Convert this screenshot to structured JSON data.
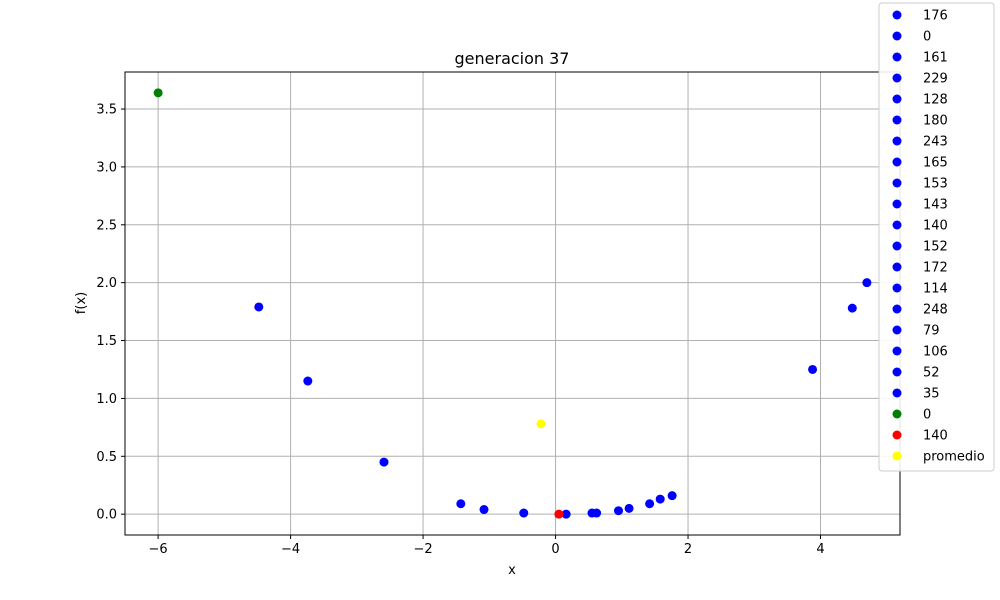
{
  "chart_data": {
    "type": "scatter",
    "title": "generacion 37",
    "xlabel": "x",
    "ylabel": "f(x)",
    "xlim": [
      -6.5,
      5.2
    ],
    "ylim": [
      -0.18,
      3.82
    ],
    "xticks": [
      -6,
      -4,
      -2,
      0,
      2,
      4
    ],
    "yticks": [
      0.0,
      0.5,
      1.0,
      1.5,
      2.0,
      2.5,
      3.0,
      3.5
    ],
    "xtick_labels": [
      "−6",
      "−4",
      "−2",
      "0",
      "2",
      "4"
    ],
    "ytick_labels": [
      "0.0",
      "0.5",
      "1.0",
      "1.5",
      "2.0",
      "2.5",
      "3.0",
      "3.5"
    ],
    "grid": true,
    "legend_position": "top-right",
    "colors": {
      "blue": "#0000ff",
      "green": "#008000",
      "red": "#ff0000",
      "yellow": "#ffff00"
    },
    "series": [
      {
        "name": "176",
        "color": "blue",
        "x": [
          -4.48
        ],
        "y": [
          1.79
        ]
      },
      {
        "name": "0",
        "color": "blue",
        "x": [
          -3.74
        ],
        "y": [
          1.15
        ]
      },
      {
        "name": "161",
        "color": "blue",
        "x": [
          -2.59
        ],
        "y": [
          0.45
        ]
      },
      {
        "name": "229",
        "color": "blue",
        "x": [
          -1.43
        ],
        "y": [
          0.09
        ]
      },
      {
        "name": "128",
        "color": "blue",
        "x": [
          -1.08
        ],
        "y": [
          0.04
        ]
      },
      {
        "name": "180",
        "color": "blue",
        "x": [
          -0.48
        ],
        "y": [
          0.01
        ]
      },
      {
        "name": "243",
        "color": "blue",
        "x": [
          0.16
        ],
        "y": [
          0.0
        ]
      },
      {
        "name": "165",
        "color": "blue",
        "x": [
          0.55
        ],
        "y": [
          0.01
        ]
      },
      {
        "name": "153",
        "color": "blue",
        "x": [
          0.62
        ],
        "y": [
          0.01
        ]
      },
      {
        "name": "143",
        "color": "blue",
        "x": [
          0.95
        ],
        "y": [
          0.03
        ]
      },
      {
        "name": "140",
        "color": "blue",
        "x": [
          1.11
        ],
        "y": [
          0.05
        ]
      },
      {
        "name": "152",
        "color": "blue",
        "x": [
          1.42
        ],
        "y": [
          0.09
        ]
      },
      {
        "name": "172",
        "color": "blue",
        "x": [
          1.58
        ],
        "y": [
          0.13
        ]
      },
      {
        "name": "114",
        "color": "blue",
        "x": [
          1.76
        ],
        "y": [
          0.16
        ]
      },
      {
        "name": "248",
        "color": "blue",
        "x": [
          3.88
        ],
        "y": [
          1.25
        ]
      },
      {
        "name": "79",
        "color": "blue",
        "x": [
          4.48
        ],
        "y": [
          1.78
        ]
      },
      {
        "name": "106",
        "color": "blue",
        "x": [
          4.7
        ],
        "y": [
          2.0
        ]
      },
      {
        "name": "52",
        "color": "blue",
        "x": [],
        "y": []
      },
      {
        "name": "35",
        "color": "blue",
        "x": [],
        "y": []
      },
      {
        "name": "0",
        "color": "green",
        "x": [
          -6.0
        ],
        "y": [
          3.64
        ]
      },
      {
        "name": "140",
        "color": "red",
        "x": [
          0.05
        ],
        "y": [
          0.0
        ]
      },
      {
        "name": "promedio",
        "color": "yellow",
        "x": [
          -0.22
        ],
        "y": [
          0.78
        ]
      }
    ]
  }
}
